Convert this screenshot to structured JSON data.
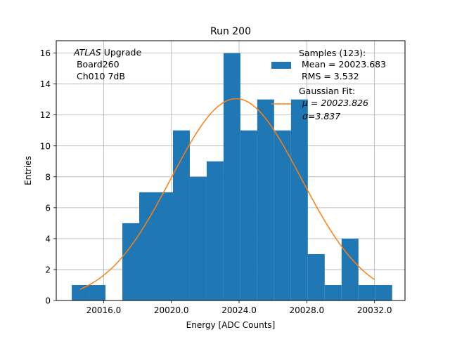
{
  "chart_data": {
    "type": "bar",
    "title": "Run 200",
    "xlabel": "Energy [ADC Counts]",
    "ylabel": "Entries",
    "xlim": [
      13.2,
      33.8
    ],
    "ylim": [
      0,
      16.8
    ],
    "x_offset": 20000,
    "xticks": [
      16,
      20,
      24,
      28,
      32
    ],
    "xtick_labels": [
      "20016.0",
      "20020.0",
      "20024.0",
      "20028.0",
      "20032.0"
    ],
    "yticks": [
      0,
      2,
      4,
      6,
      8,
      10,
      12,
      14,
      16
    ],
    "ytick_labels": [
      "0",
      "2",
      "4",
      "6",
      "8",
      "10",
      "12",
      "14",
      "16"
    ],
    "grid": true,
    "histogram": {
      "name": "Samples",
      "color": "#1f77b4",
      "bin_edges": [
        14.117,
        15.113,
        16.109,
        17.105,
        18.101,
        19.097,
        20.093,
        21.089,
        22.085,
        23.081,
        24.077,
        25.073,
        26.069,
        27.065,
        28.061,
        29.057,
        30.053,
        31.049,
        32.045,
        33.041
      ],
      "counts": [
        1,
        1,
        0,
        5,
        7,
        7,
        11,
        8,
        9,
        16,
        11,
        13,
        11,
        13,
        3,
        1,
        4,
        1,
        1
      ]
    },
    "fit": {
      "name": "Gaussian Fit",
      "color": "#ff7f0e",
      "amplitude": 13.05,
      "mu": 23.826,
      "sigma": 3.837,
      "x_range": [
        14.6,
        32.0
      ]
    },
    "legend_position": "top-right",
    "legend": {
      "samples_lines": [
        "Samples (123):",
        " Mean = 20023.683",
        " RMS = 3.532"
      ],
      "fit_lines": [
        "Gaussian Fit:",
        "μ = 20023.826",
        "σ=3.837"
      ]
    },
    "annotation": {
      "italic": "ATLAS",
      "rest": " Upgrade",
      "line2": " Board260",
      "line3": " Ch010 7dB"
    }
  }
}
